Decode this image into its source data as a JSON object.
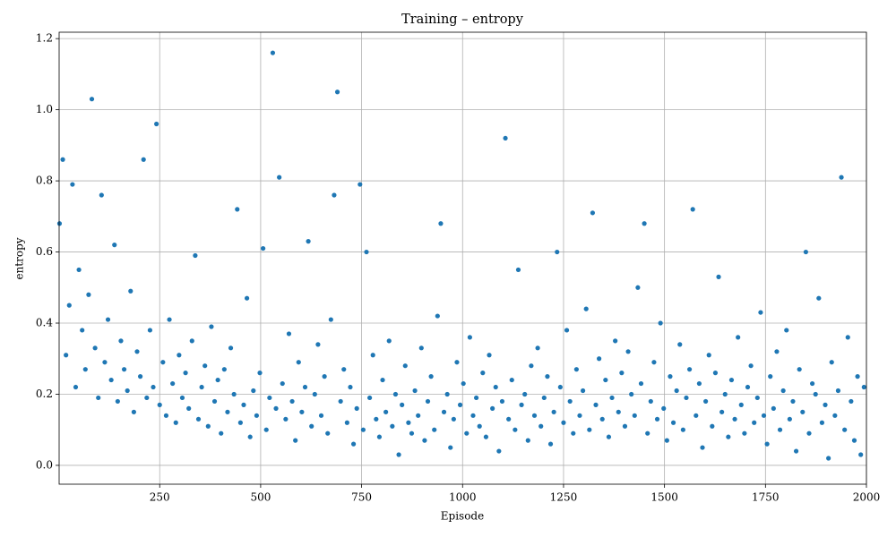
{
  "chart_data": {
    "type": "scatter",
    "title": "Training – entropy",
    "xlabel": "Episode",
    "ylabel": "entropy",
    "color": "#1f77b4",
    "grid": true,
    "xlim": [
      1,
      2000
    ],
    "xticks": [
      250,
      500,
      750,
      1000,
      1250,
      1500,
      1750,
      2000
    ],
    "ylim": [
      -0.053,
      1.218
    ],
    "yticks": [
      {
        "value": 0.0,
        "label": "0.0"
      },
      0.2,
      0.4,
      0.6,
      0.8,
      {
        "value": 1.0,
        "label": "1.0"
      },
      1.2
    ],
    "x": [
      2,
      10,
      18,
      26,
      34,
      42,
      50,
      58,
      66,
      74,
      82,
      90,
      98,
      106,
      114,
      122,
      130,
      138,
      146,
      154,
      162,
      170,
      178,
      186,
      194,
      202,
      210,
      218,
      226,
      234,
      242,
      250,
      258,
      266,
      274,
      282,
      290,
      298,
      306,
      314,
      322,
      330,
      338,
      346,
      354,
      362,
      370,
      378,
      386,
      394,
      402,
      410,
      418,
      426,
      434,
      442,
      450,
      458,
      466,
      474,
      482,
      490,
      498,
      506,
      514,
      522,
      530,
      538,
      546,
      554,
      562,
      570,
      578,
      586,
      594,
      602,
      610,
      618,
      626,
      634,
      642,
      650,
      658,
      666,
      674,
      682,
      690,
      698,
      706,
      714,
      722,
      730,
      738,
      746,
      754,
      762,
      770,
      778,
      786,
      794,
      802,
      810,
      818,
      826,
      834,
      842,
      850,
      858,
      866,
      874,
      882,
      890,
      898,
      906,
      914,
      922,
      930,
      938,
      946,
      954,
      962,
      970,
      978,
      986,
      994,
      1002,
      1010,
      1018,
      1026,
      1034,
      1042,
      1050,
      1058,
      1066,
      1074,
      1082,
      1090,
      1098,
      1106,
      1114,
      1122,
      1130,
      1138,
      1146,
      1154,
      1162,
      1170,
      1178,
      1186,
      1194,
      1202,
      1210,
      1218,
      1226,
      1234,
      1242,
      1250,
      1258,
      1266,
      1274,
      1282,
      1290,
      1298,
      1306,
      1314,
      1322,
      1330,
      1338,
      1346,
      1354,
      1362,
      1370,
      1378,
      1386,
      1394,
      1402,
      1410,
      1418,
      1426,
      1434,
      1442,
      1450,
      1458,
      1466,
      1474,
      1482,
      1490,
      1498,
      1506,
      1514,
      1522,
      1530,
      1538,
      1546,
      1554,
      1562,
      1570,
      1578,
      1586,
      1594,
      1602,
      1610,
      1618,
      1626,
      1634,
      1642,
      1650,
      1658,
      1666,
      1674,
      1682,
      1690,
      1698,
      1706,
      1714,
      1722,
      1730,
      1738,
      1746,
      1754,
      1762,
      1770,
      1778,
      1786,
      1794,
      1802,
      1810,
      1818,
      1826,
      1834,
      1842,
      1850,
      1858,
      1866,
      1874,
      1882,
      1890,
      1898,
      1906,
      1914,
      1922,
      1930,
      1938,
      1946,
      1954,
      1962,
      1970,
      1978,
      1986,
      1994
    ],
    "values": [
      0.68,
      0.86,
      0.31,
      0.45,
      0.79,
      0.22,
      0.55,
      0.38,
      0.27,
      0.48,
      1.03,
      0.33,
      0.19,
      0.76,
      0.29,
      0.41,
      0.24,
      0.62,
      0.18,
      0.35,
      0.27,
      0.21,
      0.49,
      0.15,
      0.32,
      0.25,
      0.86,
      0.19,
      0.38,
      0.22,
      0.96,
      0.17,
      0.29,
      0.14,
      0.41,
      0.23,
      0.12,
      0.31,
      0.19,
      0.26,
      0.16,
      0.35,
      0.59,
      0.13,
      0.22,
      0.28,
      0.11,
      0.39,
      0.18,
      0.24,
      0.09,
      0.27,
      0.15,
      0.33,
      0.2,
      0.72,
      0.12,
      0.17,
      0.47,
      0.08,
      0.21,
      0.14,
      0.26,
      0.61,
      0.1,
      0.19,
      1.16,
      0.16,
      0.81,
      0.23,
      0.13,
      0.37,
      0.18,
      0.07,
      0.29,
      0.15,
      0.22,
      0.63,
      0.11,
      0.2,
      0.34,
      0.14,
      0.25,
      0.09,
      0.41,
      0.76,
      1.05,
      0.18,
      0.27,
      0.12,
      0.22,
      0.06,
      0.16,
      0.79,
      0.1,
      0.6,
      0.19,
      0.31,
      0.13,
      0.08,
      0.24,
      0.15,
      0.35,
      0.11,
      0.2,
      0.03,
      0.17,
      0.28,
      0.12,
      0.09,
      0.21,
      0.14,
      0.33,
      0.07,
      0.18,
      0.25,
      0.1,
      0.42,
      0.68,
      0.15,
      0.2,
      0.05,
      0.13,
      0.29,
      0.17,
      0.23,
      0.09,
      0.36,
      0.14,
      0.19,
      0.11,
      0.26,
      0.08,
      0.31,
      0.16,
      0.22,
      0.04,
      0.18,
      0.92,
      0.13,
      0.24,
      0.1,
      0.55,
      0.17,
      0.2,
      0.07,
      0.28,
      0.14,
      0.33,
      0.11,
      0.19,
      0.25,
      0.06,
      0.15,
      0.6,
      0.22,
      0.12,
      0.38,
      0.18,
      0.09,
      0.27,
      0.14,
      0.21,
      0.44,
      0.1,
      0.71,
      0.17,
      0.3,
      0.13,
      0.24,
      0.08,
      0.19,
      0.35,
      0.15,
      0.26,
      0.11,
      0.32,
      0.2,
      0.14,
      0.5,
      0.23,
      0.68,
      0.09,
      0.18,
      0.29,
      0.13,
      0.4,
      0.16,
      0.07,
      0.25,
      0.12,
      0.21,
      0.34,
      0.1,
      0.19,
      0.27,
      0.72,
      0.14,
      0.23,
      0.05,
      0.18,
      0.31,
      0.11,
      0.26,
      0.53,
      0.15,
      0.2,
      0.08,
      0.24,
      0.13,
      0.36,
      0.17,
      0.09,
      0.22,
      0.28,
      0.12,
      0.19,
      0.43,
      0.14,
      0.06,
      0.25,
      0.16,
      0.32,
      0.1,
      0.21,
      0.38,
      0.13,
      0.18,
      0.04,
      0.27,
      0.15,
      0.6,
      0.09,
      0.23,
      0.2,
      0.47,
      0.12,
      0.17,
      0.02,
      0.29,
      0.14,
      0.21,
      0.81,
      0.1,
      0.36,
      0.18,
      0.07,
      0.25,
      0.03,
      0.22
    ]
  }
}
